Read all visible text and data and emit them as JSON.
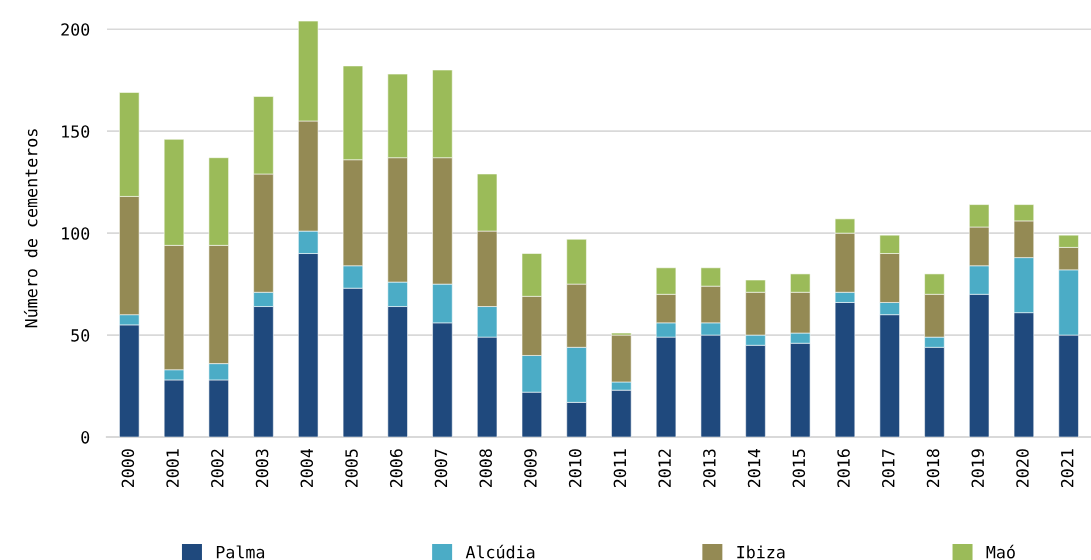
{
  "chart_data": {
    "type": "bar",
    "stacked": true,
    "ylabel": "Número de cementeros",
    "categories": [
      "2000",
      "2001",
      "2002",
      "2003",
      "2004",
      "2005",
      "2006",
      "2007",
      "2008",
      "2009",
      "2010",
      "2011",
      "2012",
      "2013",
      "2014",
      "2015",
      "2016",
      "2017",
      "2018",
      "2019",
      "2020",
      "2021"
    ],
    "series": [
      {
        "name": "Palma",
        "color": "#1f497d",
        "values": [
          55,
          28,
          28,
          64,
          90,
          73,
          64,
          56,
          49,
          22,
          17,
          23,
          49,
          50,
          45,
          46,
          66,
          60,
          44,
          70,
          61,
          50
        ]
      },
      {
        "name": "Alcúdia",
        "color": "#4bacc6",
        "values": [
          5,
          5,
          8,
          7,
          11,
          11,
          12,
          19,
          15,
          18,
          27,
          4,
          7,
          6,
          5,
          5,
          5,
          6,
          5,
          14,
          27,
          32
        ]
      },
      {
        "name": "Ibiza",
        "color": "#948a54",
        "values": [
          58,
          61,
          58,
          58,
          54,
          52,
          61,
          62,
          37,
          29,
          31,
          23,
          14,
          18,
          21,
          20,
          29,
          24,
          21,
          19,
          18,
          11
        ]
      },
      {
        "name": "Maó",
        "color": "#9bbb59",
        "values": [
          51,
          52,
          43,
          38,
          49,
          46,
          41,
          43,
          28,
          21,
          22,
          1,
          13,
          9,
          6,
          9,
          7,
          9,
          10,
          11,
          8,
          6
        ]
      }
    ],
    "ylim": [
      0,
      205
    ],
    "yticks": [
      0,
      50,
      100,
      150,
      200
    ],
    "grid": "y",
    "legend": "bottom"
  }
}
